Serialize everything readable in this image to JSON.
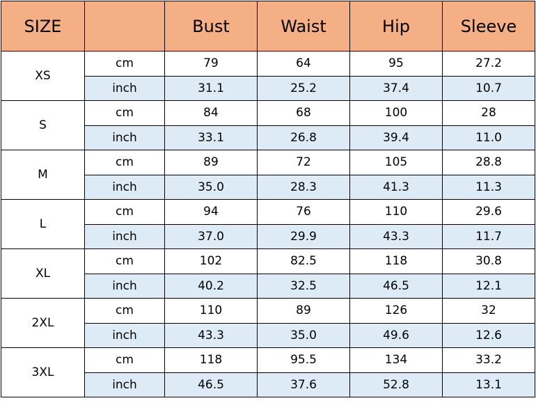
{
  "colors": {
    "header_bg": "#F4B084",
    "inch_row_bg": "#DDEBF7",
    "cm_row_bg": "#FFFFFF"
  },
  "headers": [
    "SIZE",
    "",
    "Bust",
    "Waist",
    "Hip",
    "Sleeve"
  ],
  "rows": [
    {
      "size": "XS",
      "cm": {
        "unit": "cm",
        "values": [
          "79",
          "64",
          "95",
          "27.2"
        ]
      },
      "inch": {
        "unit": "inch",
        "values": [
          "31.1",
          "25.2",
          "37.4",
          "10.7"
        ]
      }
    },
    {
      "size": "S",
      "cm": {
        "unit": "cm",
        "values": [
          "84",
          "68",
          "100",
          "28"
        ]
      },
      "inch": {
        "unit": "inch",
        "values": [
          "33.1",
          "26.8",
          "39.4",
          "11.0"
        ]
      }
    },
    {
      "size": "M",
      "cm": {
        "unit": "cm",
        "values": [
          "89",
          "72",
          "105",
          "28.8"
        ]
      },
      "inch": {
        "unit": "inch",
        "values": [
          "35.0",
          "28.3",
          "41.3",
          "11.3"
        ]
      }
    },
    {
      "size": "L",
      "cm": {
        "unit": "cm",
        "values": [
          "94",
          "76",
          "110",
          "29.6"
        ]
      },
      "inch": {
        "unit": "inch",
        "values": [
          "37.0",
          "29.9",
          "43.3",
          "11.7"
        ]
      }
    },
    {
      "size": "XL",
      "cm": {
        "unit": "cm",
        "values": [
          "102",
          "82.5",
          "118",
          "30.8"
        ]
      },
      "inch": {
        "unit": "inch",
        "values": [
          "40.2",
          "32.5",
          "46.5",
          "12.1"
        ]
      }
    },
    {
      "size": "2XL",
      "cm": {
        "unit": "cm",
        "values": [
          "110",
          "89",
          "126",
          "32"
        ]
      },
      "inch": {
        "unit": "inch",
        "values": [
          "43.3",
          "35.0",
          "49.6",
          "12.6"
        ]
      }
    },
    {
      "size": "3XL",
      "cm": {
        "unit": "cm",
        "values": [
          "118",
          "95.5",
          "134",
          "33.2"
        ]
      },
      "inch": {
        "unit": "inch",
        "values": [
          "46.5",
          "37.6",
          "52.8",
          "13.1"
        ]
      }
    }
  ]
}
